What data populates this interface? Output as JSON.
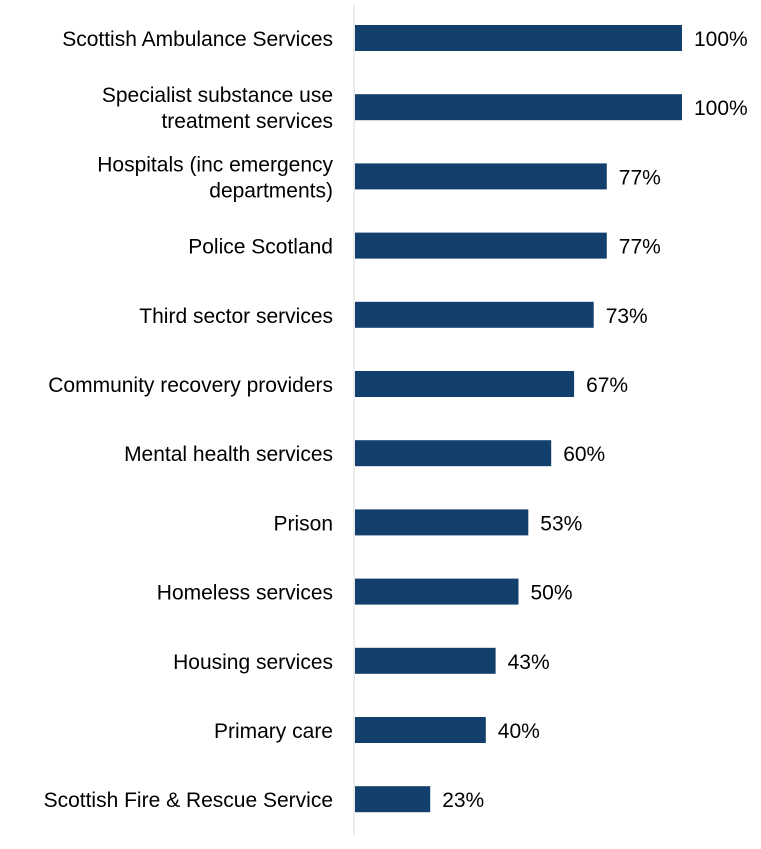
{
  "chart_data": {
    "type": "bar",
    "orientation": "horizontal",
    "title": "",
    "xlabel": "",
    "ylabel": "",
    "xlim": [
      0,
      100
    ],
    "grid": false,
    "value_suffix": "%",
    "bar_color": "#123f6b",
    "categories": [
      [
        "Scottish Ambulance Services"
      ],
      [
        "Specialist substance use",
        "treatment services"
      ],
      [
        "Hospitals (inc emergency",
        "departments)"
      ],
      [
        "Police Scotland"
      ],
      [
        "Third sector services"
      ],
      [
        "Community recovery providers"
      ],
      [
        "Mental health services"
      ],
      [
        "Prison"
      ],
      [
        "Homeless services"
      ],
      [
        "Housing services"
      ],
      [
        "Primary care"
      ],
      [
        "Scottish Fire & Rescue Service"
      ]
    ],
    "values": [
      100,
      100,
      77,
      77,
      73,
      67,
      60,
      53,
      50,
      43,
      40,
      23
    ],
    "value_labels": [
      "100%",
      "100%",
      "77%",
      "77%",
      "73%",
      "67%",
      "60%",
      "53%",
      "50%",
      "43%",
      "40%",
      "23%"
    ]
  }
}
